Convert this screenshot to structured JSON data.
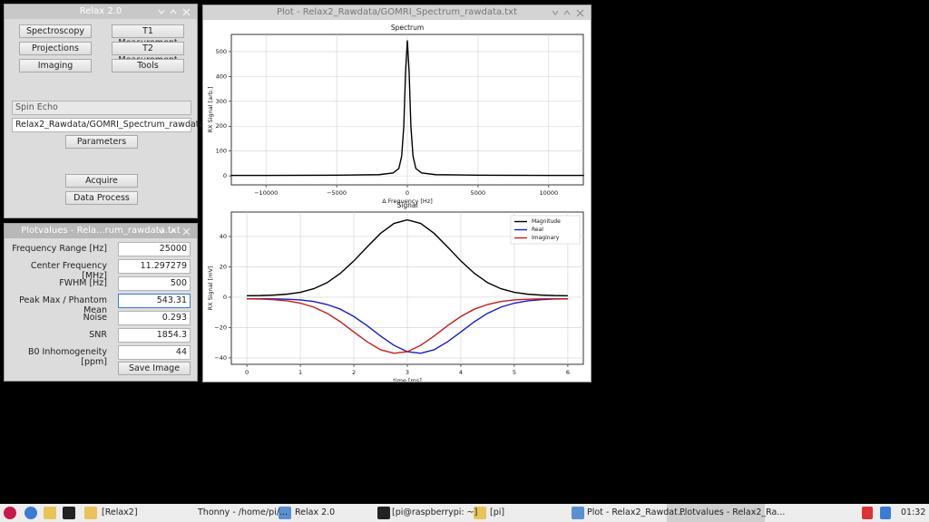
{
  "relax_window": {
    "title": "Relax 2.0",
    "buttons": [
      "Spectroscopy",
      "T1 Measurement",
      "Projections",
      "T2 Measurement",
      "Imaging",
      "Tools"
    ],
    "sequence": "Spin Echo",
    "path": "Relax2_Rawdata/GOMRI_Spectrum_rawdata",
    "parameters": "Parameters",
    "acquire": "Acquire",
    "data_process": "Data Process"
  },
  "plotvalues_window": {
    "title": "Plotvalues - Rela...rum_rawdata.txt",
    "rows": [
      {
        "label": "Frequency Range [Hz]",
        "value": 25000
      },
      {
        "label": "Center Frequency [MHz]",
        "value": 11.297279
      },
      {
        "label": "FWHM [Hz]",
        "value": 500
      },
      {
        "label": "Peak Max / Phantom Mean",
        "value": 543.31
      },
      {
        "label": "Noise",
        "value": 0.293
      },
      {
        "label": "SNR",
        "value": 1854.3
      },
      {
        "label": "B0 Inhomogeneity [ppm]",
        "value": 44
      }
    ],
    "save": "Save Image"
  },
  "plot_window": {
    "title": "Plot - Relax2_Rawdata/GOMRI_Spectrum_rawdata.txt",
    "charts": [
      {
        "type": "line",
        "title": "Spectrum",
        "xlabel": "Δ Frequency [Hz]",
        "ylabel": "RX Signal [arb.]",
        "x": [
          -12500,
          -10000,
          -5000,
          -2000,
          -1000,
          -600,
          -400,
          -250,
          -125,
          0,
          125,
          250,
          400,
          600,
          1000,
          2000,
          5000,
          10000,
          12500
        ],
        "series": [
          {
            "name": "Spectrum",
            "color": "#000000",
            "values": [
              2,
              2,
              3,
              5,
              12,
              30,
              80,
              200,
              420,
              545,
              420,
              200,
              80,
              30,
              12,
              5,
              3,
              2,
              2
            ]
          }
        ],
        "xlim": [
          -12450,
          12450
        ],
        "ylim": [
          -36,
          569
        ],
        "xticks": [
          {
            "value": -10000,
            "label": "−10000"
          },
          {
            "value": -5000,
            "label": "−5000"
          },
          0,
          5000,
          10000
        ],
        "yticks": [
          0,
          100,
          200,
          300,
          400,
          500
        ],
        "grid": true
      },
      {
        "type": "line",
        "title": "Signal",
        "xlabel": "time [ms]",
        "ylabel": "RX Signal [mV]",
        "x": [
          0,
          0.25,
          0.5,
          0.75,
          1,
          1.25,
          1.5,
          1.75,
          2,
          2.25,
          2.5,
          2.75,
          3,
          3.25,
          3.5,
          3.75,
          4,
          4.25,
          4.5,
          4.75,
          5,
          5.25,
          5.5,
          5.75,
          6
        ],
        "series": [
          {
            "name": "Magnitude",
            "color": "#000000",
            "values": [
              1.0,
              1.1,
              1.4,
              2.0,
              3.2,
              5.6,
              9.6,
              15.8,
              23.9,
              33.2,
              42.1,
              48.6,
              51.0,
              48.6,
              42.1,
              33.2,
              23.9,
              15.8,
              9.6,
              5.6,
              3.2,
              2.0,
              1.4,
              1.1,
              1.0
            ]
          },
          {
            "name": "Real",
            "color": "#1a1ac8",
            "values": [
              -1.0,
              -1.0,
              -1.1,
              -1.3,
              -1.8,
              -2.8,
              -4.8,
              -7.9,
              -12.7,
              -18.8,
              -25.6,
              -31.7,
              -35.9,
              -36.9,
              -34.6,
              -29.4,
              -22.9,
              -16.2,
              -10.6,
              -6.5,
              -3.9,
              -2.4,
              -1.6,
              -1.2,
              -1.1
            ]
          },
          {
            "name": "Imaginary",
            "color": "#c81a1a",
            "values": [
              -1.1,
              -1.2,
              -1.6,
              -2.4,
              -3.9,
              -6.5,
              -10.6,
              -16.2,
              -22.9,
              -29.4,
              -34.6,
              -36.9,
              -35.9,
              -31.7,
              -25.6,
              -18.8,
              -12.7,
              -7.9,
              -4.8,
              -2.8,
              -1.8,
              -1.3,
              -1.1,
              -1.0,
              -1.0
            ]
          }
        ],
        "xlim": [
          -0.29,
          6.29
        ],
        "ylim": [
          -44.2,
          56.1
        ],
        "xticks": [
          0,
          1,
          2,
          3,
          4,
          5,
          6
        ],
        "yticks": [
          {
            "value": -40,
            "label": "−40"
          },
          {
            "value": -20,
            "label": "−20"
          },
          0,
          20,
          40
        ],
        "grid": true,
        "legend": "upper right"
      }
    ]
  },
  "taskbar": {
    "items": [
      "[Relax2]",
      "Thonny  -  /home/pi/...",
      "Relax 2.0",
      "[pi@raspberrypi: ~]",
      "[pi]",
      "Plot - Relax2_Rawdat...",
      "Plotvalues - Relax2_Ra..."
    ],
    "clock": "01:32"
  }
}
